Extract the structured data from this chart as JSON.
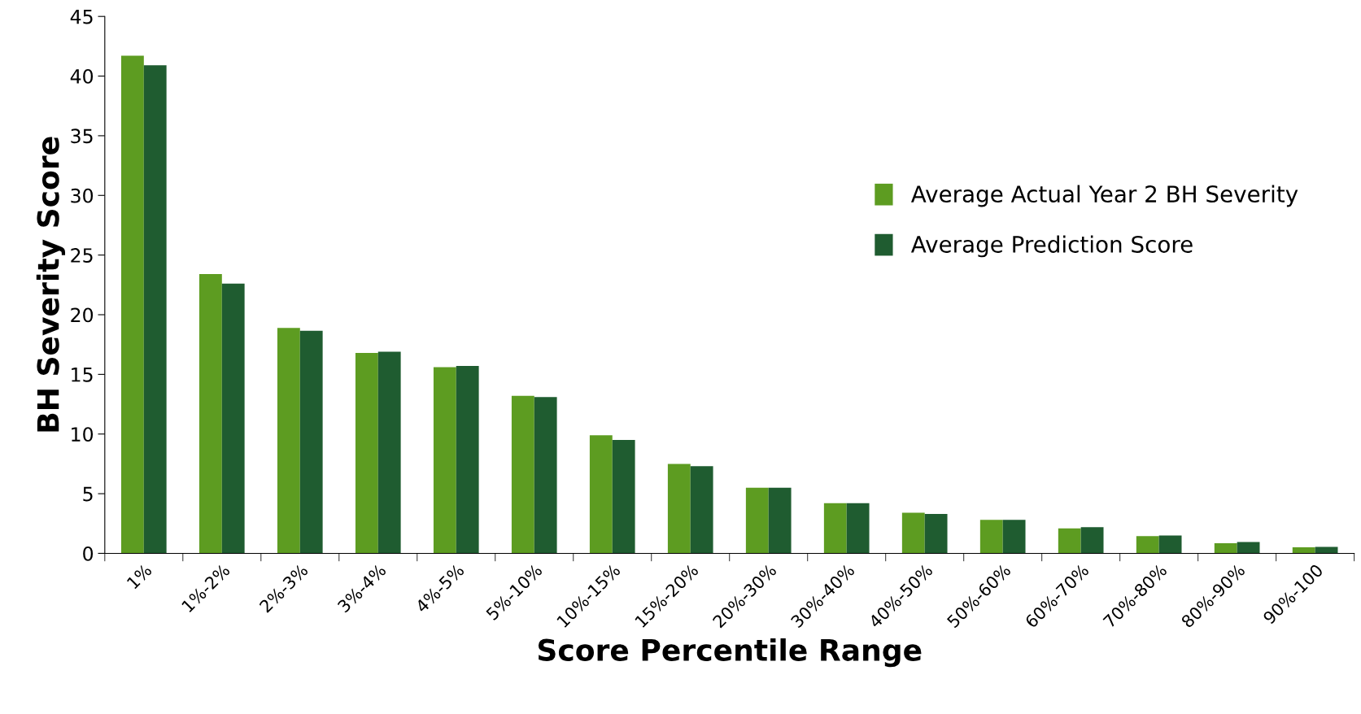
{
  "chart_data": {
    "type": "bar",
    "xlabel": "Score Percentile Range",
    "ylabel": "BH Severity Score",
    "categories": [
      "1%",
      "1%-2%",
      "2%-3%",
      "3%-4%",
      "4%-5%",
      "5%-10%",
      "10%-15%",
      "15%-20%",
      "20%-30%",
      "30%-40%",
      "40%-50%",
      "50%-60%",
      "60%-70%",
      "70%-80%",
      "80%-90%",
      "90%-100"
    ],
    "series": [
      {
        "name": "Average Actual Year 2 BH Severity",
        "color": "#5d9c21",
        "values": [
          41.7,
          23.4,
          18.9,
          16.8,
          15.6,
          13.2,
          9.9,
          7.5,
          5.5,
          4.2,
          3.4,
          2.8,
          2.1,
          1.45,
          0.85,
          0.5
        ]
      },
      {
        "name": "Average Prediction Score",
        "color": "#1f5c30",
        "values": [
          40.9,
          22.6,
          18.65,
          16.9,
          15.7,
          13.1,
          9.5,
          7.3,
          5.5,
          4.2,
          3.3,
          2.8,
          2.2,
          1.5,
          0.95,
          0.55
        ]
      }
    ],
    "ylim": [
      0,
      45
    ],
    "yticks": [
      0,
      5,
      10,
      15,
      20,
      25,
      30,
      35,
      40,
      45
    ],
    "grid": false,
    "legend": "right"
  }
}
